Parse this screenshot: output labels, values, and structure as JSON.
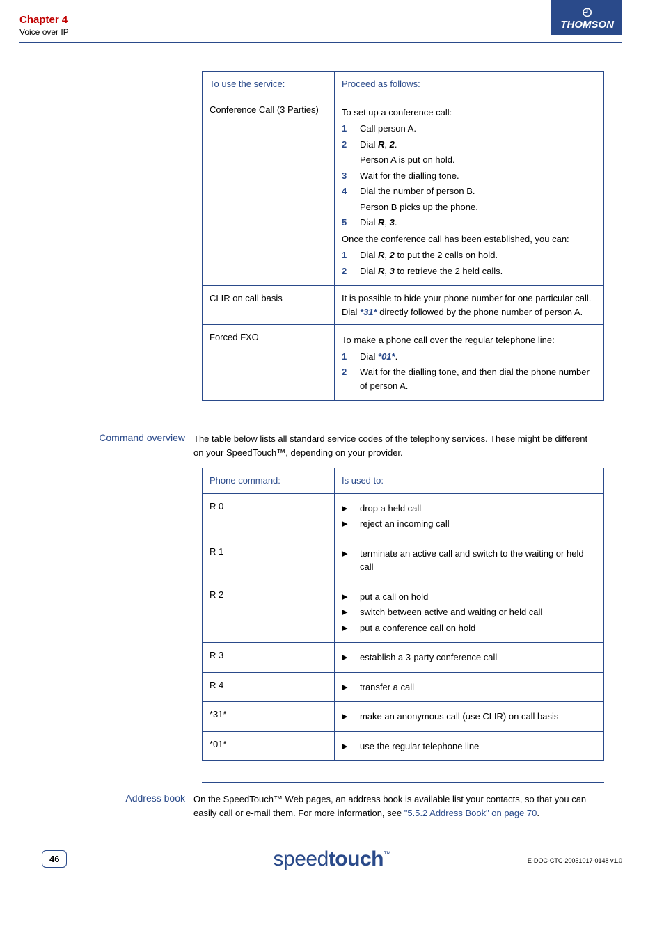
{
  "header": {
    "chapter": "Chapter 4",
    "subtitle": "Voice over IP",
    "brand": "THOMSON"
  },
  "service_table": {
    "headers": [
      "To use the service:",
      "Proceed as follows:"
    ],
    "rows": [
      {
        "service": "Conference Call (3 Parties)",
        "intro": "To set up a conference call:",
        "steps": [
          {
            "n": "1",
            "text": "Call person A."
          },
          {
            "n": "2",
            "text_pre": "Dial ",
            "key": "R",
            "text_mid": ", ",
            "key2": "2",
            "text_post": ".",
            "after": "Person A is put on hold."
          },
          {
            "n": "3",
            "text": "Wait for the dialling tone."
          },
          {
            "n": "4",
            "text": "Dial the number of person B.",
            "after": "Person B picks up the phone."
          },
          {
            "n": "5",
            "text_pre": "Dial ",
            "key": "R",
            "text_mid": ", ",
            "key2": "3",
            "text_post": "."
          }
        ],
        "outro": "Once the conference call has been established, you can:",
        "steps2": [
          {
            "n": "1",
            "text_pre": "Dial ",
            "key": "R",
            "text_mid": ", ",
            "key2": "2",
            "text_post": " to put the 2 calls on hold."
          },
          {
            "n": "2",
            "text_pre": "Dial ",
            "key": "R",
            "text_mid": ", ",
            "key2": "3",
            "text_post": " to retrieve the 2 held calls."
          }
        ]
      },
      {
        "service": "CLIR on call basis",
        "body_pre": "It is possible to hide your phone number for one particular call. Dial ",
        "body_key": "*31*",
        "body_post": " directly followed by the phone number of person A."
      },
      {
        "service": "Forced FXO",
        "intro": "To make a phone call over the regular telephone line:",
        "steps": [
          {
            "n": "1",
            "text_pre": "Dial ",
            "key": "*01*",
            "text_post": "."
          },
          {
            "n": "2",
            "text": "Wait for the dialling tone, and then dial the phone number of person A."
          }
        ]
      }
    ]
  },
  "command_section": {
    "label": "Command overview",
    "intro": "The table below lists all standard service codes of the telephony services. These might be different on your SpeedTouch™, depending on your provider."
  },
  "command_table": {
    "headers": [
      "Phone command:",
      "Is used to:"
    ],
    "rows": [
      {
        "cmd": "R 0",
        "uses": [
          "drop a held call",
          "reject an incoming call"
        ]
      },
      {
        "cmd": "R 1",
        "uses": [
          "terminate an active call and switch to the waiting or held call"
        ]
      },
      {
        "cmd": "R 2",
        "uses": [
          "put a call on hold",
          "switch between active and waiting or held call",
          "put a conference call on hold"
        ]
      },
      {
        "cmd": "R 3",
        "uses": [
          "establish a 3-party conference call"
        ]
      },
      {
        "cmd": "R 4",
        "uses": [
          "transfer a call"
        ]
      },
      {
        "cmd": "*31*",
        "uses": [
          "make an anonymous call (use CLIR) on call basis"
        ]
      },
      {
        "cmd": "*01*",
        "uses": [
          "use the regular telephone line"
        ]
      }
    ]
  },
  "address_section": {
    "label": "Address book",
    "body_pre": "On the SpeedTouch™ Web pages, an address book is available list your contacts, so that you can easily call or e-mail them. For more information, see ",
    "link": "\"5.5.2 Address Book\" on page 70",
    "body_post": "."
  },
  "footer": {
    "page": "46",
    "logo_light": "speed",
    "logo_bold": "touch",
    "tm": "™",
    "docid": "E-DOC-CTC-20051017-0148 v1.0"
  }
}
